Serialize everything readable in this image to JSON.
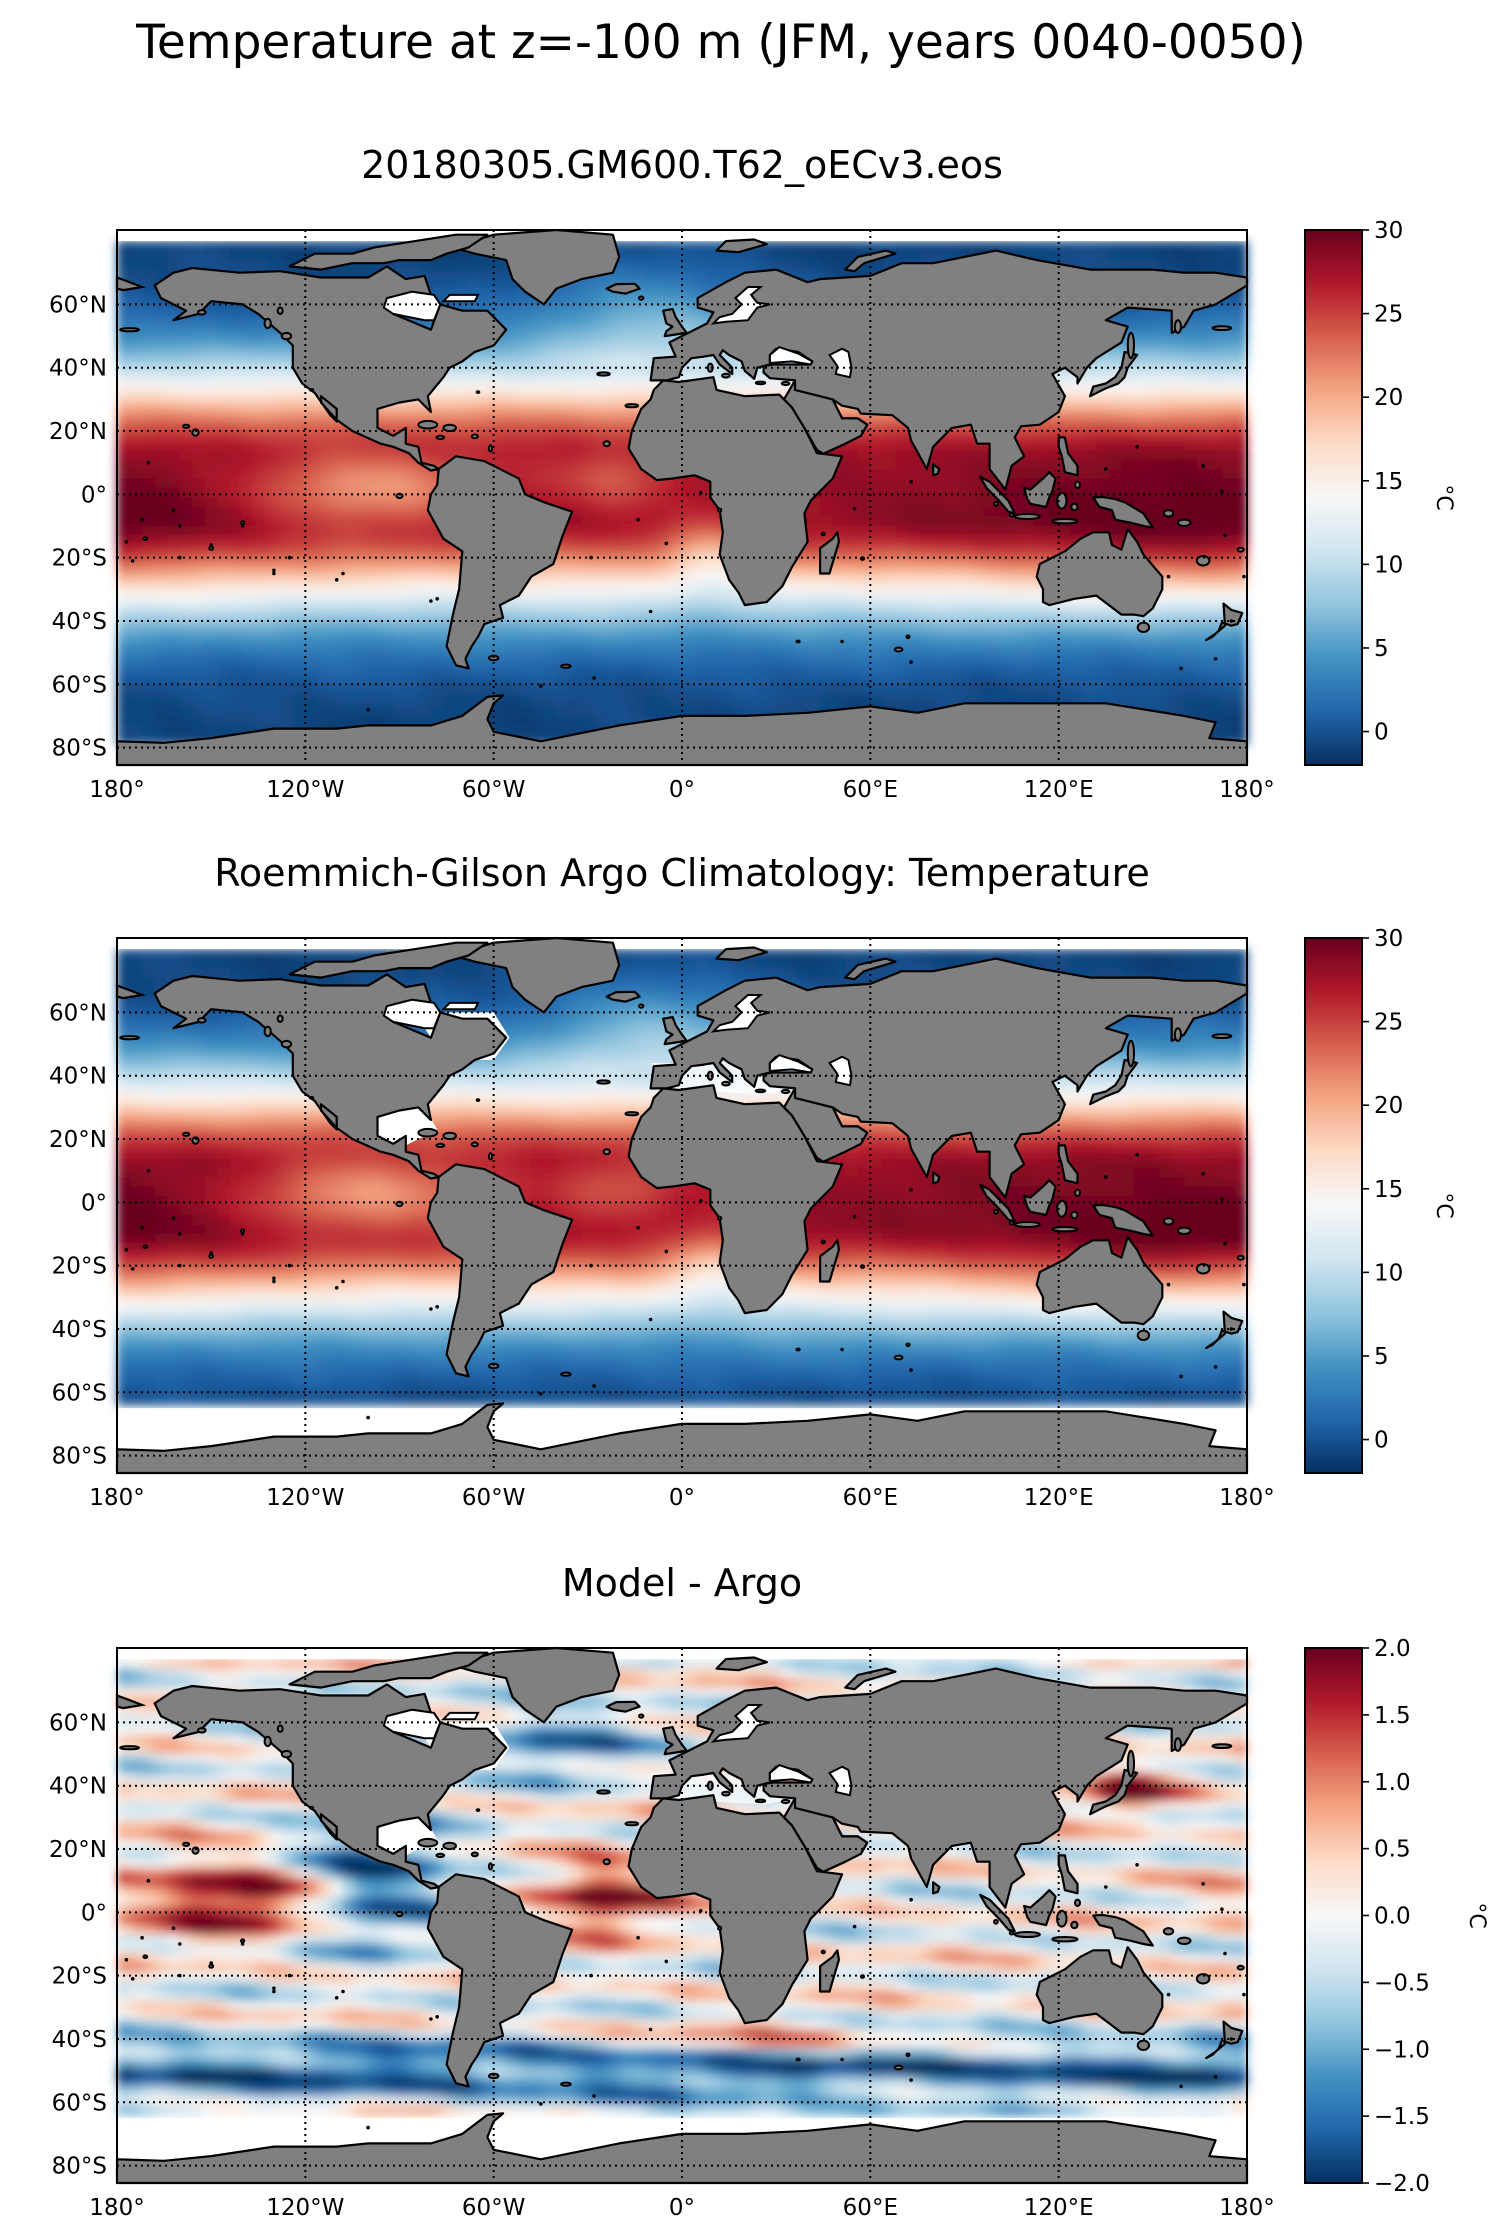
{
  "figure": {
    "suptitle": "Temperature at z=-100 m (JFM, years 0040-0050)"
  },
  "lon_ticks": [
    "180°",
    "120°W",
    "60°W",
    "0°",
    "60°E",
    "120°E",
    "180°"
  ],
  "lat_ticks": [
    "60°N",
    "40°N",
    "20°N",
    "0°",
    "20°S",
    "40°S",
    "60°S",
    "80°S"
  ],
  "colors": {
    "land": "#808080",
    "coast": "#000000",
    "no_data": "#ffffff",
    "cmap": [
      "#053061",
      "#2166ac",
      "#4393c3",
      "#92c5de",
      "#d1e5f0",
      "#f7f7f7",
      "#fddbc7",
      "#f4a582",
      "#d6604d",
      "#b2182b",
      "#67001f"
    ]
  },
  "panels": [
    {
      "id": "model",
      "title": "20180305.GM600.T62_oECv3.eos",
      "field": "temperature_model",
      "colorbar": {
        "label": "°C",
        "vmin": -2,
        "vmax": 30,
        "ticks": [
          {
            "v": 30,
            "t": "30"
          },
          {
            "v": 25,
            "t": "25"
          },
          {
            "v": 20,
            "t": "20"
          },
          {
            "v": 15,
            "t": "15"
          },
          {
            "v": 10,
            "t": "10"
          },
          {
            "v": 5,
            "t": "5"
          },
          {
            "v": 0,
            "t": "0"
          }
        ]
      }
    },
    {
      "id": "argo",
      "title": "Roemmich-Gilson Argo Climatology: Temperature",
      "field": "temperature_argo",
      "colorbar": {
        "label": "°C",
        "vmin": -2,
        "vmax": 30,
        "ticks": [
          {
            "v": 30,
            "t": "30"
          },
          {
            "v": 25,
            "t": "25"
          },
          {
            "v": 20,
            "t": "20"
          },
          {
            "v": 15,
            "t": "15"
          },
          {
            "v": 10,
            "t": "10"
          },
          {
            "v": 5,
            "t": "5"
          },
          {
            "v": 0,
            "t": "0"
          }
        ]
      }
    },
    {
      "id": "diff",
      "title": "Model - Argo",
      "field": "difference",
      "colorbar": {
        "label": "°C",
        "vmin": -2.0,
        "vmax": 2.0,
        "ticks": [
          {
            "v": 2.0,
            "t": "2.0"
          },
          {
            "v": 1.5,
            "t": "1.5"
          },
          {
            "v": 1.0,
            "t": "1.0"
          },
          {
            "v": 0.5,
            "t": "0.5"
          },
          {
            "v": 0.0,
            "t": "0.0"
          },
          {
            "v": -0.5,
            "t": "−0.5"
          },
          {
            "v": -1.0,
            "t": "−1.0"
          },
          {
            "v": -1.5,
            "t": "−1.5"
          },
          {
            "v": -2.0,
            "t": "−2.0"
          }
        ]
      }
    }
  ]
}
